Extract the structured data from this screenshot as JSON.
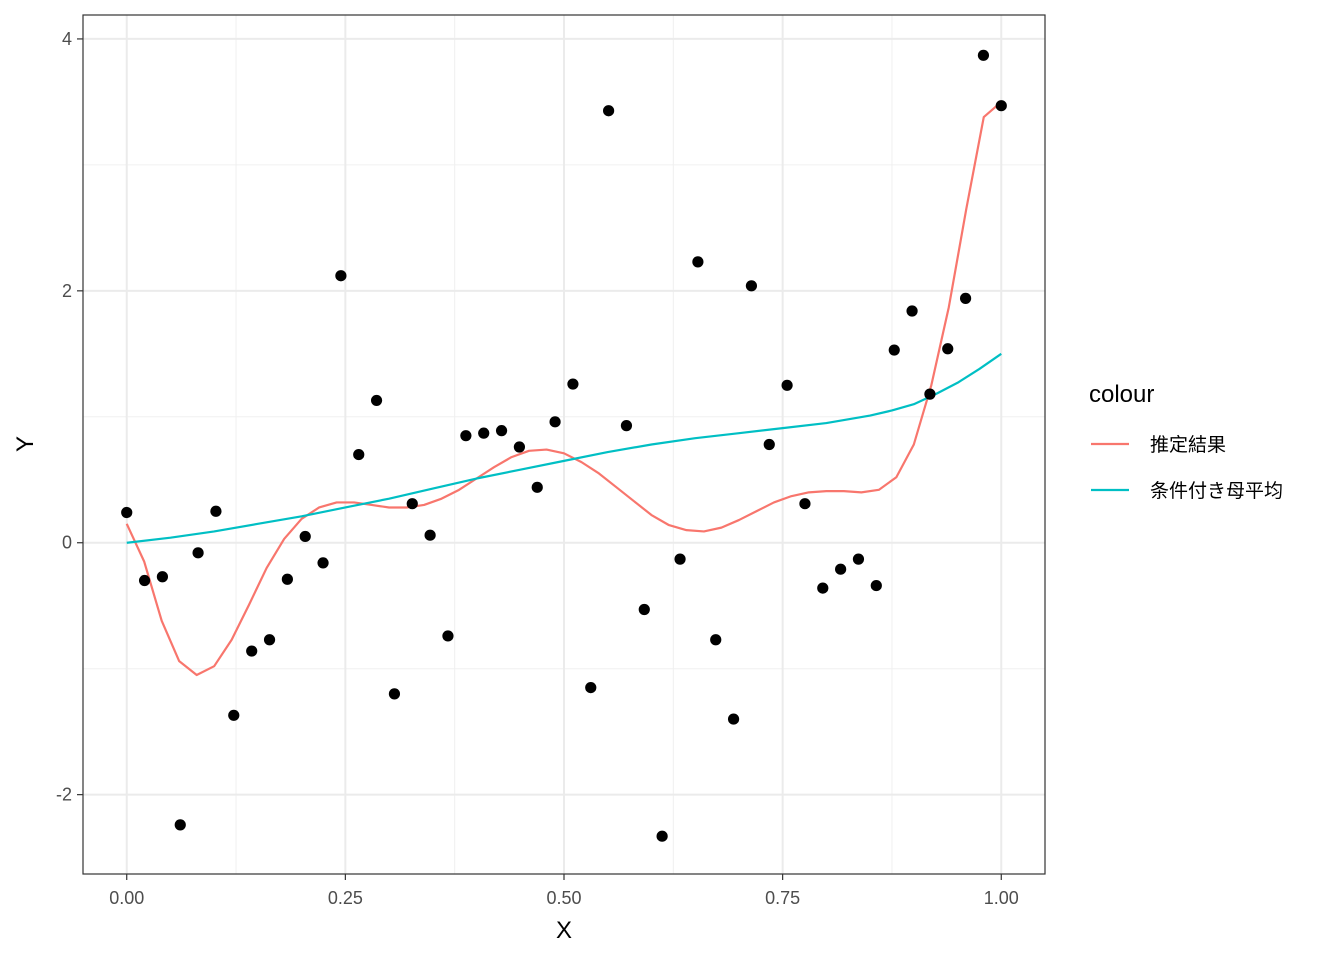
{
  "chart_data": {
    "type": "scatter",
    "xlabel": "X",
    "ylabel": "Y",
    "xlim": [
      -0.05,
      1.05
    ],
    "ylim": [
      -2.63,
      4.19
    ],
    "x_ticks": [
      0.0,
      0.25,
      0.5,
      0.75,
      1.0
    ],
    "x_tick_labels": [
      "0.00",
      "0.25",
      "0.50",
      "0.75",
      "1.00"
    ],
    "y_ticks": [
      -2,
      0,
      2,
      4
    ],
    "y_tick_labels": [
      "-2",
      "0",
      "2",
      "4"
    ],
    "grid": true,
    "legend_title": "colour",
    "legend_position": "right",
    "points": {
      "color": "#000000",
      "x": [
        0.0,
        0.0204,
        0.0408,
        0.0612,
        0.0816,
        0.102,
        0.1224,
        0.1429,
        0.1633,
        0.1837,
        0.2041,
        0.2245,
        0.2449,
        0.2653,
        0.2857,
        0.3061,
        0.3265,
        0.3469,
        0.3673,
        0.3878,
        0.4082,
        0.4286,
        0.449,
        0.4694,
        0.4898,
        0.5102,
        0.5306,
        0.551,
        0.5714,
        0.5918,
        0.6122,
        0.6327,
        0.6531,
        0.6735,
        0.6939,
        0.7143,
        0.7347,
        0.7551,
        0.7755,
        0.7959,
        0.8163,
        0.8367,
        0.8571,
        0.8776,
        0.898,
        0.9184,
        0.9388,
        0.9592,
        0.9796,
        1.0
      ],
      "y": [
        0.24,
        -0.3,
        -0.27,
        -2.24,
        -0.08,
        0.25,
        -1.37,
        -0.86,
        -0.77,
        -0.29,
        0.05,
        -0.16,
        2.12,
        0.7,
        1.13,
        -1.2,
        0.31,
        0.06,
        -0.74,
        0.85,
        0.87,
        0.89,
        0.76,
        0.44,
        0.96,
        1.26,
        -1.15,
        3.43,
        0.93,
        -0.53,
        -2.33,
        -0.13,
        2.23,
        -0.77,
        -1.4,
        2.04,
        0.78,
        1.25,
        0.31,
        -0.36,
        -0.21,
        -0.13,
        -0.34,
        1.53,
        1.84,
        1.18,
        1.54,
        1.94,
        3.87,
        3.47
      ]
    },
    "series": [
      {
        "name": "推定結果",
        "color": "#F8766D",
        "x": [
          0.0,
          0.02,
          0.04,
          0.06,
          0.08,
          0.1,
          0.12,
          0.14,
          0.16,
          0.18,
          0.2,
          0.22,
          0.24,
          0.26,
          0.28,
          0.3,
          0.32,
          0.34,
          0.36,
          0.38,
          0.4,
          0.42,
          0.44,
          0.46,
          0.48,
          0.5,
          0.52,
          0.54,
          0.56,
          0.58,
          0.6,
          0.62,
          0.64,
          0.66,
          0.68,
          0.7,
          0.72,
          0.74,
          0.76,
          0.78,
          0.8,
          0.82,
          0.84,
          0.86,
          0.88,
          0.9,
          0.92,
          0.94,
          0.96,
          0.98,
          1.0
        ],
        "y": [
          0.15,
          -0.15,
          -0.62,
          -0.94,
          -1.05,
          -0.98,
          -0.77,
          -0.49,
          -0.2,
          0.03,
          0.19,
          0.28,
          0.32,
          0.32,
          0.3,
          0.28,
          0.28,
          0.3,
          0.35,
          0.42,
          0.51,
          0.6,
          0.68,
          0.73,
          0.74,
          0.71,
          0.64,
          0.55,
          0.44,
          0.33,
          0.22,
          0.14,
          0.1,
          0.09,
          0.12,
          0.18,
          0.25,
          0.32,
          0.37,
          0.4,
          0.41,
          0.41,
          0.4,
          0.42,
          0.52,
          0.78,
          1.25,
          1.87,
          2.65,
          3.38,
          3.5
        ]
      },
      {
        "name": "条件付き母平均",
        "color": "#00BFC4",
        "x": [
          0.0,
          0.05,
          0.1,
          0.15,
          0.2,
          0.25,
          0.3,
          0.35,
          0.4,
          0.45,
          0.5,
          0.55,
          0.6,
          0.65,
          0.7,
          0.75,
          0.8,
          0.85,
          0.875,
          0.9,
          0.925,
          0.95,
          0.975,
          1.0
        ],
        "y": [
          0.0,
          0.04,
          0.09,
          0.15,
          0.21,
          0.28,
          0.35,
          0.43,
          0.51,
          0.58,
          0.65,
          0.72,
          0.78,
          0.83,
          0.87,
          0.91,
          0.95,
          1.01,
          1.05,
          1.1,
          1.18,
          1.27,
          1.38,
          1.5
        ]
      }
    ]
  }
}
